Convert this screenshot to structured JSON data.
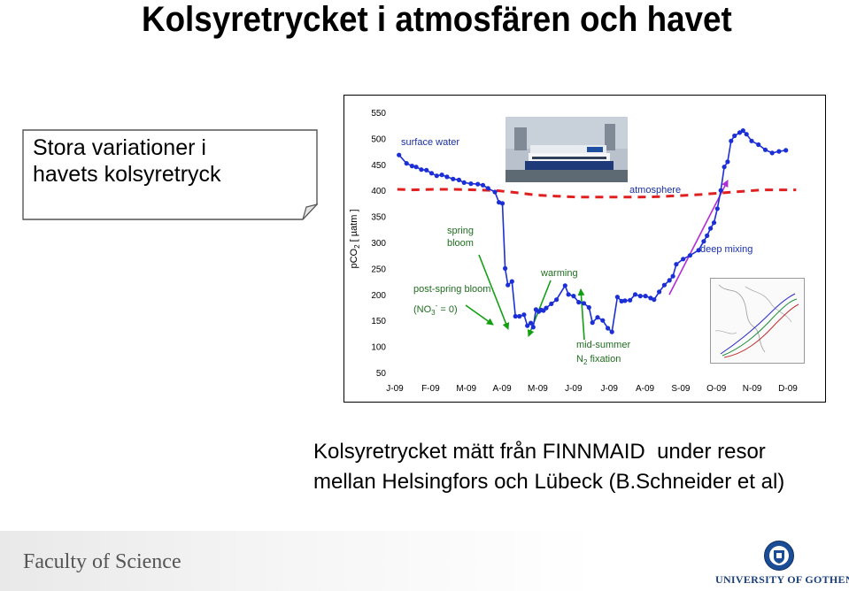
{
  "slide": {
    "title": "Kolsyretrycket i atmosfären och havet",
    "note": [
      "Stora variationer i",
      "havets kolsyretryck"
    ],
    "caption": [
      "Kolsyretrycket mätt från FINNMAID  under resor",
      "mellan Helsingfors och Lübeck (B.Schneider et al)"
    ],
    "footer_left": "Faculty of Science",
    "footer_right": "UNIVERSITY OF GOTHENBURG"
  },
  "chart_data": {
    "type": "line",
    "ylabel": {
      "prefix": "pCO",
      "sub": "2",
      "suffix": " [ µatm ]"
    },
    "ylim": [
      50,
      550
    ],
    "yticks": [
      "550",
      "500",
      "450",
      "400",
      "350",
      "300",
      "250",
      "200",
      "150",
      "100",
      "50"
    ],
    "x_categories": [
      "J-09",
      "F-09",
      "M-09",
      "A-09",
      "M-09",
      "J-09",
      "J-09",
      "A-09",
      "S-09",
      "O-09",
      "N-09",
      "D-09"
    ],
    "xlim": [
      0,
      12
    ],
    "colors": {
      "surface": "#1c2fd6",
      "atmosphere": "#e02020",
      "arrow_green": "#12a012",
      "arrow_purple": "#b32cd6",
      "label_blue": "#1a2ea6",
      "label_green": "#1f6e1f"
    },
    "series": [
      {
        "key": "surface",
        "x": [
          0.2,
          0.42,
          0.58,
          0.7,
          0.85,
          1.0,
          1.15,
          1.3,
          1.45,
          1.6,
          1.78,
          1.95,
          2.1,
          2.3,
          2.5,
          2.65,
          2.8,
          3.0,
          3.12,
          3.22,
          3.3,
          3.38,
          3.5,
          3.6,
          3.72,
          3.85,
          3.95,
          4.05,
          4.12,
          4.2,
          4.28,
          4.35,
          4.42,
          4.5,
          4.65,
          4.8,
          5.05,
          5.15,
          5.3,
          5.45,
          5.6,
          5.75,
          5.85,
          6.0,
          6.15,
          6.3,
          6.42,
          6.58,
          6.7,
          6.8,
          6.95,
          7.1,
          7.25,
          7.4,
          7.55,
          7.65,
          7.8,
          7.95,
          8.1,
          8.2,
          8.3,
          8.5,
          8.7,
          8.95,
          9.1,
          9.2,
          9.3,
          9.4,
          9.5,
          9.6,
          9.7,
          9.8,
          9.9,
          10.0,
          10.15,
          10.25,
          10.35,
          10.5,
          10.7,
          10.9,
          11.1,
          11.3,
          11.5
        ],
        "y": [
          468,
          452,
          447,
          445,
          440,
          439,
          433,
          428,
          430,
          426,
          422,
          420,
          415,
          413,
          412,
          410,
          404,
          397,
          377,
          375,
          250,
          218,
          225,
          158,
          158,
          161,
          140,
          145,
          137,
          171,
          167,
          170,
          169,
          174,
          182,
          190,
          217,
          200,
          197,
          185,
          183,
          175,
          146,
          156,
          150,
          135,
          128,
          195,
          187,
          188,
          189,
          200,
          197,
          197,
          193,
          190,
          205,
          218,
          227,
          235,
          258,
          268,
          275,
          285,
          302,
          313,
          327,
          338,
          365,
          400,
          445,
          455,
          495,
          505,
          511,
          515,
          508,
          495,
          488,
          478,
          472,
          475,
          477
        ]
      },
      {
        "key": "atmosphere",
        "x": [
          0.15,
          0.6,
          1.2,
          1.8,
          2.4,
          3.0,
          3.6,
          4.2,
          4.8,
          5.4,
          6.0,
          6.6,
          7.2,
          7.8,
          8.4,
          9.0,
          9.6,
          10.2,
          10.8,
          11.4,
          11.8
        ],
        "y": [
          402,
          401,
          402,
          402,
          401,
          400,
          396,
          391,
          389,
          387,
          387,
          387,
          387,
          388,
          390,
          392,
          395,
          398,
          401,
          401,
          401
        ]
      }
    ],
    "annotations": [
      {
        "text": "surface water"
      },
      {
        "text": "atmosphere"
      },
      {
        "text": "spring"
      },
      {
        "text": "bloom"
      },
      {
        "text": "post-spring bloom"
      },
      {
        "text_parts": [
          "(NO",
          "3",
          "-",
          " = 0)"
        ]
      },
      {
        "text": "warming"
      },
      {
        "text": "mid-summer"
      },
      {
        "text_parts": [
          "N",
          "2",
          " fixation"
        ]
      },
      {
        "text": "deep mixing"
      }
    ]
  }
}
